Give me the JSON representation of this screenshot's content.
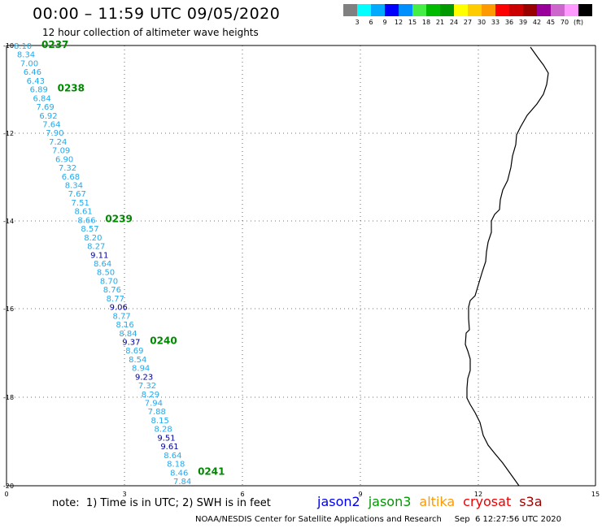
{
  "header": {
    "title": "00:00 – 11:59 UTC 09/05/2020",
    "subtitle": "12 hour collection of altimeter wave heights"
  },
  "legend": {
    "colors": [
      "#808080",
      "#00ffff",
      "#00aaff",
      "#0000ff",
      "#008fff",
      "#44ee44",
      "#00bb00",
      "#009900",
      "#ffff00",
      "#ffcc00",
      "#ff9900",
      "#ff0000",
      "#cc0000",
      "#990000",
      "#990099",
      "#cc66cc",
      "#ff99ff",
      "#000000"
    ],
    "labels": [
      "3",
      "6",
      "9",
      "12",
      "15",
      "18",
      "21",
      "24",
      "27",
      "30",
      "33",
      "36",
      "39",
      "42",
      "45",
      "70",
      "(ft)"
    ]
  },
  "map": {
    "y_ticks": [
      "-10",
      "-12",
      "-14",
      "-16",
      "-18",
      "-20"
    ],
    "x_ticks": [
      "0",
      "3",
      "6",
      "9",
      "12",
      "15"
    ],
    "colors": {
      "light": "#22aaee",
      "dark": "#000099",
      "time": "#008800"
    },
    "track": [
      {
        "v": "8.10",
        "c": "light"
      },
      {
        "v": "8.34",
        "c": "light"
      },
      {
        "v": "7.00",
        "c": "light"
      },
      {
        "v": "6.46",
        "c": "light"
      },
      {
        "v": "6.43",
        "c": "light"
      },
      {
        "v": "6.89",
        "c": "light"
      },
      {
        "v": "6.84",
        "c": "light"
      },
      {
        "v": "7.69",
        "c": "light"
      },
      {
        "v": "6.92",
        "c": "light"
      },
      {
        "v": "7.64",
        "c": "light"
      },
      {
        "v": "7.90",
        "c": "light"
      },
      {
        "v": "7.24",
        "c": "light"
      },
      {
        "v": "7.09",
        "c": "light"
      },
      {
        "v": "6.90",
        "c": "light"
      },
      {
        "v": "7.32",
        "c": "light"
      },
      {
        "v": "6.68",
        "c": "light"
      },
      {
        "v": "8.34",
        "c": "light"
      },
      {
        "v": "7.67",
        "c": "light"
      },
      {
        "v": "7.51",
        "c": "light"
      },
      {
        "v": "8.61",
        "c": "light"
      },
      {
        "v": "8.66",
        "c": "light"
      },
      {
        "v": "8.57",
        "c": "light"
      },
      {
        "v": "8.20",
        "c": "light"
      },
      {
        "v": "8.27",
        "c": "light"
      },
      {
        "v": "9.11",
        "c": "dark"
      },
      {
        "v": "8.64",
        "c": "light"
      },
      {
        "v": "8.50",
        "c": "light"
      },
      {
        "v": "8.70",
        "c": "light"
      },
      {
        "v": "8.76",
        "c": "light"
      },
      {
        "v": "8.77",
        "c": "light"
      },
      {
        "v": "9.06",
        "c": "dark"
      },
      {
        "v": "8.77",
        "c": "light"
      },
      {
        "v": "8.16",
        "c": "light"
      },
      {
        "v": "8.84",
        "c": "light"
      },
      {
        "v": "9.37",
        "c": "dark"
      },
      {
        "v": "8.69",
        "c": "light"
      },
      {
        "v": "8.54",
        "c": "light"
      },
      {
        "v": "8.94",
        "c": "light"
      },
      {
        "v": "9.23",
        "c": "dark"
      },
      {
        "v": "7.32",
        "c": "light"
      },
      {
        "v": "8.29",
        "c": "light"
      },
      {
        "v": "7.94",
        "c": "light"
      },
      {
        "v": "7.88",
        "c": "light"
      },
      {
        "v": "8.15",
        "c": "light"
      },
      {
        "v": "8.28",
        "c": "light"
      },
      {
        "v": "9.51",
        "c": "dark"
      },
      {
        "v": "9.61",
        "c": "dark"
      },
      {
        "v": "8.64",
        "c": "light"
      },
      {
        "v": "8.18",
        "c": "light"
      },
      {
        "v": "8.46",
        "c": "light"
      },
      {
        "v": "7.84",
        "c": "light"
      }
    ],
    "times": [
      {
        "t": "0237",
        "after": 0
      },
      {
        "t": "0238",
        "after": 5
      },
      {
        "t": "0239",
        "after": 20
      },
      {
        "t": "0240",
        "after": 34
      },
      {
        "t": "0241",
        "after": 49
      }
    ]
  },
  "footer": {
    "note": "note:  1) Time is in UTC; 2) SWH is in feet",
    "satellites": [
      {
        "name": "jason2",
        "color": "#0000ee"
      },
      {
        "name": "jason3",
        "color": "#009900"
      },
      {
        "name": "altika",
        "color": "#ff9900"
      },
      {
        "name": "cryosat",
        "color": "#ee0000"
      },
      {
        "name": "s3a",
        "color": "#990000"
      }
    ],
    "credit": "NOAA/NESDIS Center for Satellite Applications and Research     Sep  6 12:27:56 UTC 2020"
  }
}
